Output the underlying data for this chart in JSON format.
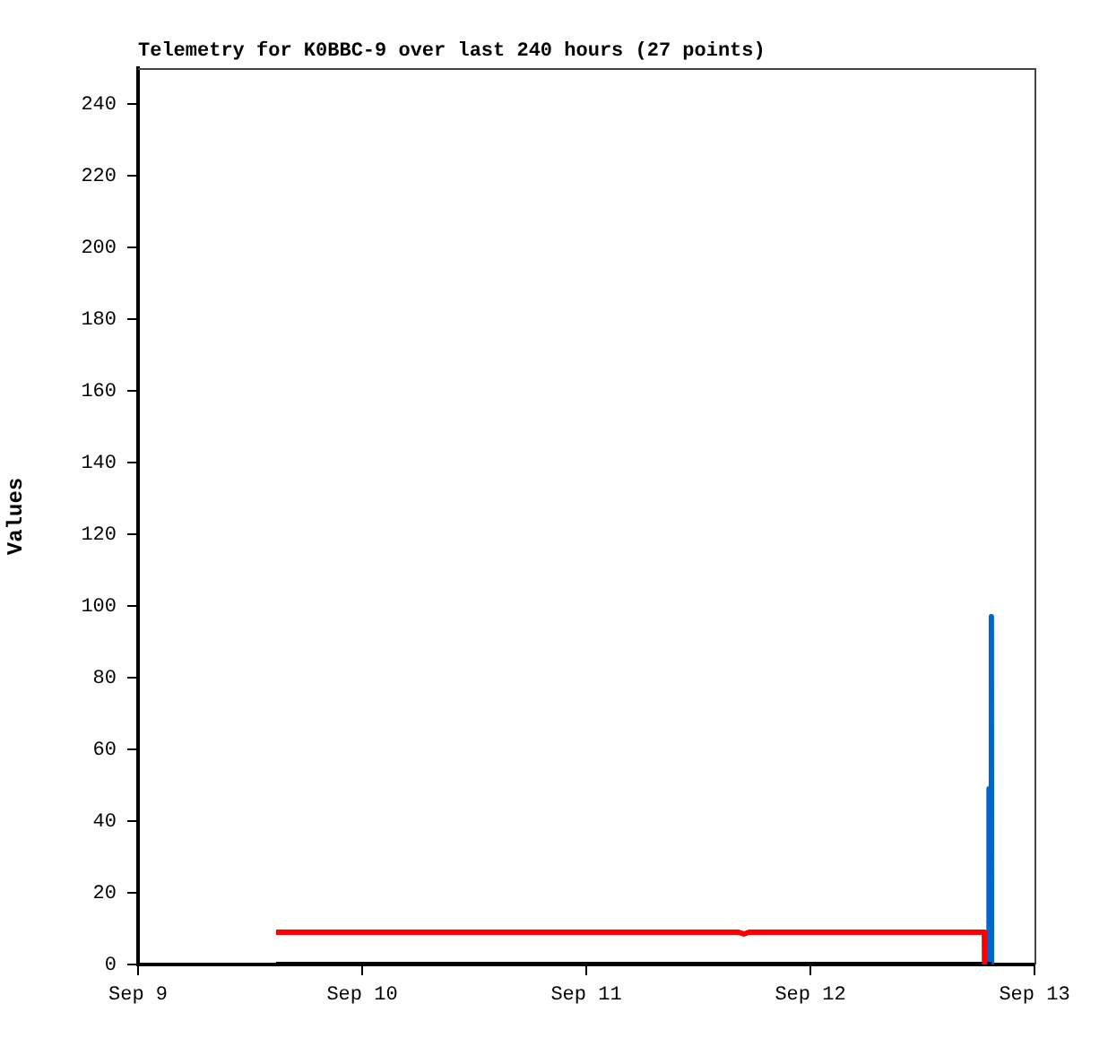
{
  "chart_data": {
    "type": "line",
    "title": "Telemetry for K0BBC-9 over last 240 hours (27 points)",
    "ylabel": "Values",
    "xlim": [
      "--09-09",
      "--09-13"
    ],
    "xticks": [
      {
        "value": "--09-09",
        "label": "Sep 9"
      },
      {
        "value": "--09-10",
        "label": "Sep 10"
      },
      {
        "value": "--09-11",
        "label": "Sep 11"
      },
      {
        "value": "--09-12",
        "label": "Sep 12"
      },
      {
        "value": "--09-13",
        "label": "Sep 13"
      }
    ],
    "ylim": [
      0,
      250
    ],
    "yticks": [
      0,
      20,
      40,
      60,
      80,
      100,
      120,
      140,
      160,
      180,
      200,
      220,
      240
    ],
    "grid": false,
    "legend": false,
    "marker": "none",
    "line_style": "solid",
    "series": [
      {
        "color": "#ff0000",
        "x": [
          "--09-09T14:47",
          "--09-11T16:20",
          "--09-11T16:53",
          "--09-11T17:25",
          "--09-12T18:38",
          "--09-12T18:39"
        ],
        "values": [
          9,
          9,
          8.5,
          9,
          9,
          0
        ]
      },
      {
        "color": "#000000",
        "x": [
          "--09-09T14:47",
          "--09-12T19:26"
        ],
        "values": [
          0,
          0
        ]
      },
      {
        "color": "#0066cc",
        "x": [
          "--09-12T19:05",
          "--09-12T19:06",
          "--09-12T19:10",
          "--09-12T19:22",
          "--09-12T19:23",
          "--09-12T19:24"
        ],
        "values": [
          0,
          49,
          0,
          0,
          97,
          0
        ]
      }
    ]
  }
}
